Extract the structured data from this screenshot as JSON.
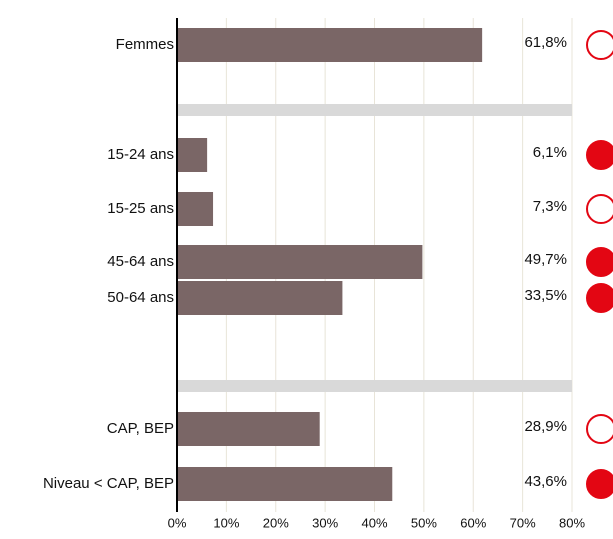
{
  "chart_data": {
    "type": "hbar",
    "color": "#7a6666",
    "marker_color": "#e30613",
    "separator_color": "#d9d9d9",
    "groups": [
      {
        "categories": [
          "Femmes"
        ],
        "values": [
          61.8
        ],
        "value_labels": [
          "61,8%"
        ],
        "marker_filled": [
          false
        ]
      },
      {
        "categories": [
          "15-24 ans",
          "15-25 ans",
          "45-64 ans",
          "50-64 ans"
        ],
        "values": [
          6.1,
          7.3,
          49.7,
          33.5
        ],
        "value_labels": [
          "6,1%",
          "7,3%",
          "49,7%",
          "33,5%"
        ],
        "marker_filled": [
          true,
          false,
          true,
          true
        ]
      },
      {
        "categories": [
          "CAP, BEP",
          "Niveau < CAP, BEP"
        ],
        "values": [
          28.9,
          43.6
        ],
        "value_labels": [
          "28,9%",
          "43,6%"
        ],
        "marker_filled": [
          false,
          true
        ]
      }
    ],
    "xlim": [
      0,
      80
    ],
    "xticks": [
      {
        "value": 0,
        "label": "0%"
      },
      {
        "value": 10,
        "label": "10%"
      },
      {
        "value": 20,
        "label": "20%"
      },
      {
        "value": 30,
        "label": "30%"
      },
      {
        "value": 40,
        "label": "40%"
      },
      {
        "value": 50,
        "label": "50%"
      },
      {
        "value": 60,
        "label": "60%"
      },
      {
        "value": 70,
        "label": "70%"
      },
      {
        "value": 80,
        "label": "80%"
      }
    ],
    "grid": true
  }
}
